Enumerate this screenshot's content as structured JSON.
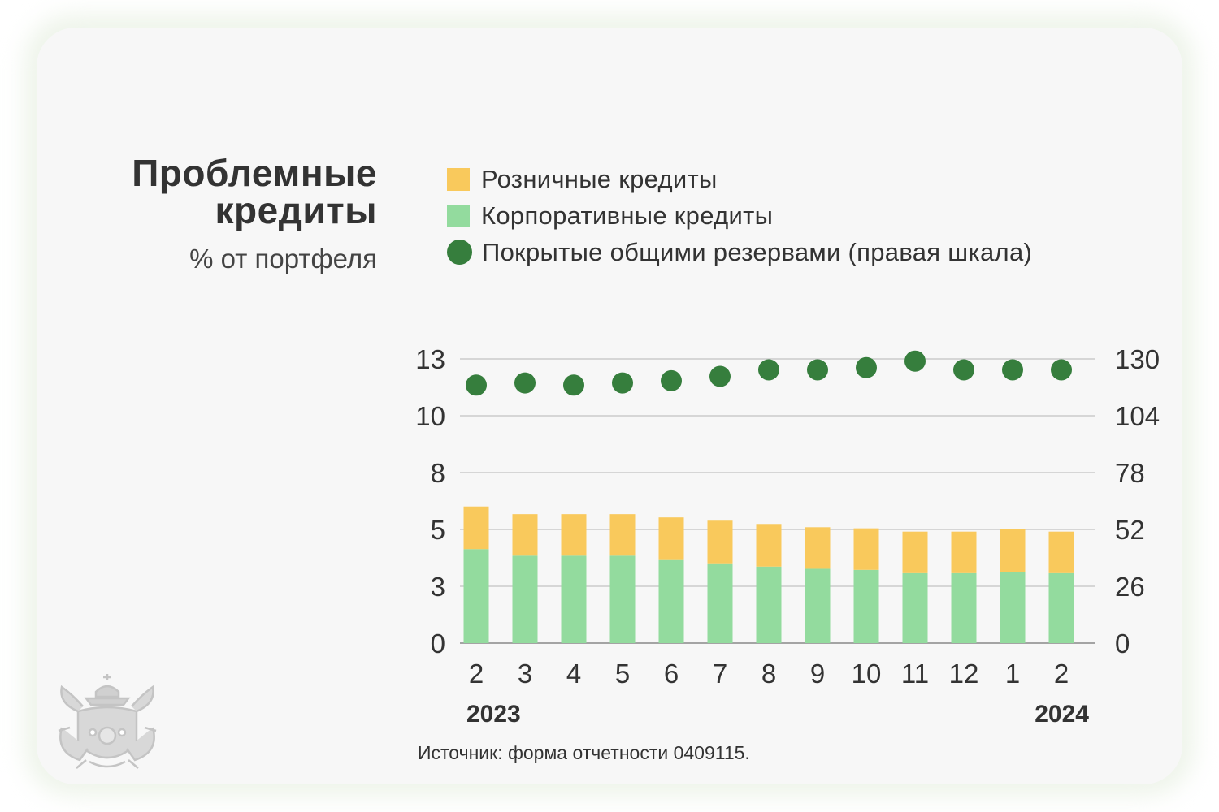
{
  "title": "Проблемные кредиты",
  "subtitle": "% от портфеля",
  "source": "Источник: форма отчетности 0409115.",
  "legend": [
    {
      "label": "Розничные кредиты",
      "color": "#f9c95c",
      "shape": "square"
    },
    {
      "label": "Корпоративные кредиты",
      "color": "#93db9e",
      "shape": "square"
    },
    {
      "label": "Покрытые общими резервами (правая шкала)",
      "color": "#367e3d",
      "shape": "circle"
    }
  ],
  "chart_data": {
    "type": "bar",
    "stacked": true,
    "categories": [
      "2",
      "3",
      "4",
      "5",
      "6",
      "7",
      "8",
      "9",
      "10",
      "11",
      "12",
      "1",
      "2"
    ],
    "year_labels": [
      "2023",
      "2024"
    ],
    "y_left": {
      "ticks": [
        "0",
        "3",
        "5",
        "8",
        "10",
        "13"
      ],
      "ylim": [
        0,
        13
      ]
    },
    "y_right": {
      "ticks": [
        "0",
        "26",
        "52",
        "78",
        "104",
        "130"
      ],
      "ylim": [
        0,
        130
      ]
    },
    "series": [
      {
        "name": "Корпоративные кредиты",
        "axis": "left",
        "color": "#93db9e",
        "values": [
          4.3,
          4.0,
          4.0,
          4.0,
          3.8,
          3.65,
          3.5,
          3.4,
          3.35,
          3.2,
          3.2,
          3.25,
          3.2
        ]
      },
      {
        "name": "Розничные кредиты",
        "axis": "left",
        "color": "#f9c95c",
        "values": [
          1.95,
          1.9,
          1.9,
          1.9,
          1.95,
          1.95,
          1.95,
          1.9,
          1.9,
          1.9,
          1.9,
          1.95,
          1.9
        ]
      },
      {
        "name": "Покрытые общими резервами",
        "axis": "right",
        "type": "scatter",
        "color": "#367e3d",
        "values": [
          118,
          119,
          118,
          119,
          120,
          122,
          125,
          125,
          126,
          129,
          125,
          125,
          125
        ]
      }
    ]
  }
}
